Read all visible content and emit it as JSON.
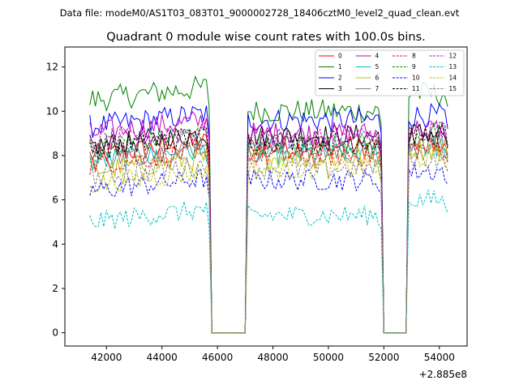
{
  "chart_data": {
    "type": "line",
    "suptitle": "Data file: modeM0/AS1T03_083T01_9000002728_18406cztM0_level2_quad_clean.evt",
    "title": "Quadrant 0 module wise count rates with 100.0s bins.",
    "xlabel": "",
    "ylabel": "",
    "x_offset_label": "+2.885e8",
    "xlim": [
      40500,
      55000
    ],
    "ylim": [
      -0.6,
      12.9
    ],
    "x_ticks": [
      42000,
      44000,
      46000,
      48000,
      50000,
      52000,
      54000
    ],
    "y_ticks": [
      0,
      2,
      4,
      6,
      8,
      10,
      12
    ],
    "bin_width_s": 100,
    "segments": [
      {
        "start": 41400,
        "end": 45700
      },
      {
        "start": 47100,
        "end": 51900
      },
      {
        "start": 52900,
        "end": 54300
      }
    ],
    "gaps": [
      [
        45700,
        47100
      ],
      [
        51900,
        52900
      ]
    ],
    "legend_location": "upper right",
    "series": [
      {
        "name": "0",
        "color": "#ff0000",
        "style": "solid",
        "seg_means": [
          8.3,
          8.4,
          8.6
        ]
      },
      {
        "name": "1",
        "color": "#008000",
        "style": "solid",
        "seg_means": [
          10.8,
          10.0,
          10.8
        ]
      },
      {
        "name": "2",
        "color": "#0000ff",
        "style": "solid",
        "seg_means": [
          9.6,
          9.6,
          9.8
        ]
      },
      {
        "name": "3",
        "color": "#000000",
        "style": "solid",
        "seg_means": [
          8.7,
          8.9,
          9.0
        ]
      },
      {
        "name": "4",
        "color": "#bf00bf",
        "style": "solid",
        "seg_means": [
          9.3,
          9.0,
          9.2
        ]
      },
      {
        "name": "5",
        "color": "#00bfbf",
        "style": "solid",
        "seg_means": [
          8.0,
          8.1,
          8.4
        ]
      },
      {
        "name": "6",
        "color": "#bfbf00",
        "style": "solid",
        "seg_means": [
          7.6,
          7.9,
          8.3
        ]
      },
      {
        "name": "7",
        "color": "#808080",
        "style": "solid",
        "seg_means": [
          8.1,
          8.2,
          8.5
        ]
      },
      {
        "name": "8",
        "color": "#ff0000",
        "style": "dashed",
        "seg_means": [
          7.9,
          8.0,
          8.3
        ]
      },
      {
        "name": "9",
        "color": "#008000",
        "style": "dashed",
        "seg_means": [
          8.7,
          8.5,
          9.0
        ]
      },
      {
        "name": "10",
        "color": "#0000ff",
        "style": "dashed",
        "seg_means": [
          6.7,
          6.9,
          7.3
        ]
      },
      {
        "name": "11",
        "color": "#000000",
        "style": "dashed",
        "seg_means": [
          8.6,
          8.7,
          8.9
        ]
      },
      {
        "name": "12",
        "color": "#bf00bf",
        "style": "dashed",
        "seg_means": [
          8.9,
          8.8,
          9.0
        ]
      },
      {
        "name": "13",
        "color": "#00bfbf",
        "style": "dashed",
        "seg_means": [
          5.3,
          5.3,
          6.0
        ]
      },
      {
        "name": "14",
        "color": "#bfbf00",
        "style": "dashed",
        "seg_means": [
          7.0,
          7.4,
          7.9
        ]
      },
      {
        "name": "15",
        "color": "#808080",
        "style": "dashed",
        "seg_means": [
          7.3,
          7.4,
          7.9
        ]
      }
    ]
  }
}
